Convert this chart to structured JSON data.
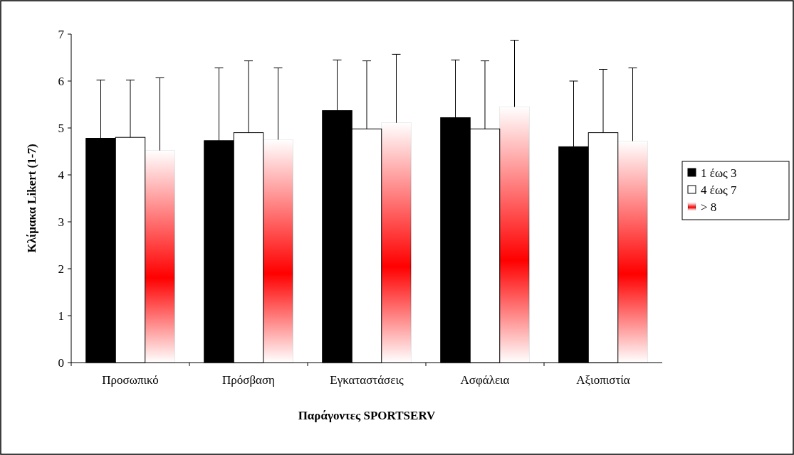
{
  "chart_data": {
    "type": "bar",
    "xlabel": "Παράγοντες SPORTSERV",
    "ylabel": "Κλίμακα Likert (1-7)",
    "categories": [
      "Προσωπικό",
      "Πρόσβαση",
      "Εγκαταστάσεις",
      "Ασφάλεια",
      "Αξιοπιστία"
    ],
    "series": [
      {
        "name": "1 έως 3",
        "color": "#000000",
        "values": [
          4.78,
          4.73,
          5.37,
          5.22,
          4.6
        ],
        "errors": [
          [
            4.78,
            6.02
          ],
          [
            4.73,
            6.28
          ],
          [
            5.37,
            6.45
          ],
          [
            5.22,
            6.45
          ],
          [
            4.6,
            6.0
          ]
        ]
      },
      {
        "name": "4 έως 7",
        "color": "#ffffff",
        "values": [
          4.8,
          4.9,
          4.98,
          4.98,
          4.9
        ],
        "errors": [
          [
            4.8,
            6.02
          ],
          [
            4.9,
            6.43
          ],
          [
            4.98,
            6.43
          ],
          [
            4.98,
            6.43
          ],
          [
            4.9,
            6.25
          ]
        ]
      },
      {
        "name": "> 8",
        "color": "#ff0000",
        "values": [
          4.52,
          4.75,
          5.11,
          5.45,
          4.72
        ],
        "errors": [
          [
            4.52,
            6.07
          ],
          [
            4.75,
            6.28
          ],
          [
            5.11,
            6.57
          ],
          [
            5.45,
            6.87
          ],
          [
            4.72,
            6.28
          ]
        ]
      }
    ],
    "ylim": [
      0,
      7
    ],
    "yticks": [
      0,
      1,
      2,
      3,
      4,
      5,
      6,
      7
    ],
    "legend": "right",
    "grid": false
  }
}
